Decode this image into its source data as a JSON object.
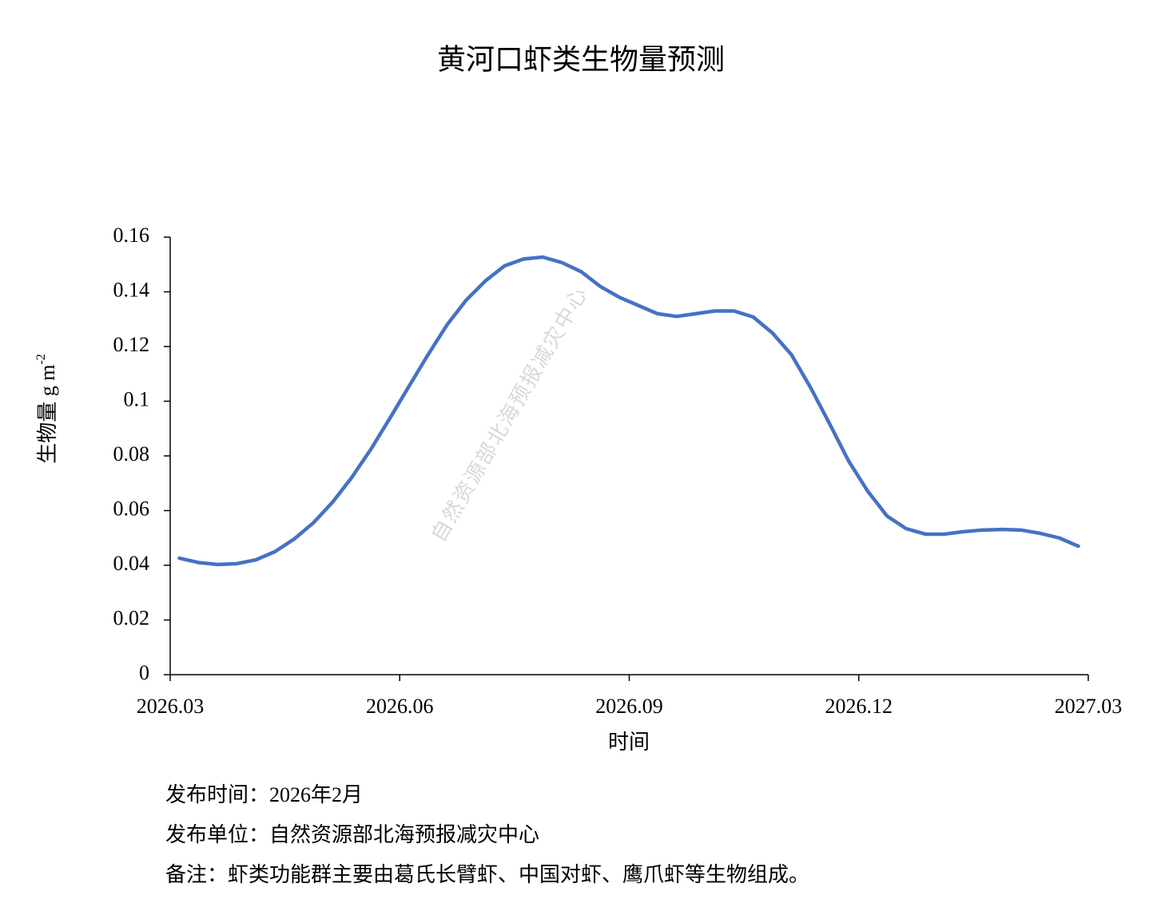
{
  "chart_data": {
    "type": "line",
    "title": "黄河口虾类生物量预测",
    "x_label": "时间",
    "y_label": "生物量 g m",
    "y_label_sup": "-2",
    "watermark": "自然资源部北海预报减灾中心",
    "x": [
      0.12,
      0.37,
      0.62,
      0.87,
      1.12,
      1.37,
      1.62,
      1.87,
      2.12,
      2.37,
      2.62,
      2.87,
      3.12,
      3.37,
      3.62,
      3.87,
      4.12,
      4.37,
      4.62,
      4.87,
      5.12,
      5.37,
      5.62,
      5.87,
      6.12,
      6.37,
      6.62,
      6.87,
      7.12,
      7.37,
      7.62,
      7.87,
      8.12,
      8.37,
      8.62,
      8.87,
      9.12,
      9.37,
      9.62,
      9.87,
      10.12,
      10.37,
      10.62,
      10.87,
      11.12,
      11.37,
      11.62,
      11.87
    ],
    "series": [
      {
        "name": "虾类生物量",
        "color": "#4472c4",
        "values": [
          0.0426,
          0.041,
          0.0403,
          0.0406,
          0.042,
          0.045,
          0.0496,
          0.0555,
          0.063,
          0.072,
          0.0823,
          0.0937,
          0.1054,
          0.117,
          0.128,
          0.137,
          0.144,
          0.1495,
          0.152,
          0.1527,
          0.1507,
          0.1474,
          0.142,
          0.138,
          0.135,
          0.132,
          0.131,
          0.132,
          0.133,
          0.133,
          0.1308,
          0.125,
          0.117,
          0.105,
          0.0917,
          0.078,
          0.067,
          0.058,
          0.0534,
          0.0514,
          0.0514,
          0.0523,
          0.0529,
          0.0531,
          0.0529,
          0.0517,
          0.05,
          0.047
        ]
      }
    ],
    "xlim": [
      0,
      12
    ],
    "xticks": [
      {
        "value": 0,
        "label": "2026.03"
      },
      {
        "value": 3,
        "label": "2026.06"
      },
      {
        "value": 6,
        "label": "2026.09"
      },
      {
        "value": 9,
        "label": "2026.12"
      },
      {
        "value": 12,
        "label": "2027.03"
      }
    ],
    "ylim": [
      0,
      0.16
    ],
    "yticks": [
      0,
      0.02,
      0.04,
      0.06,
      0.08,
      0.1,
      0.12,
      0.14,
      0.16
    ],
    "grid": false
  },
  "notes": [
    "发布时间：2026年2月",
    "发布单位：自然资源部北海预报减灾中心",
    "备注：虾类功能群主要由葛氏长臂虾、中国对虾、鹰爪虾等生物组成。"
  ]
}
